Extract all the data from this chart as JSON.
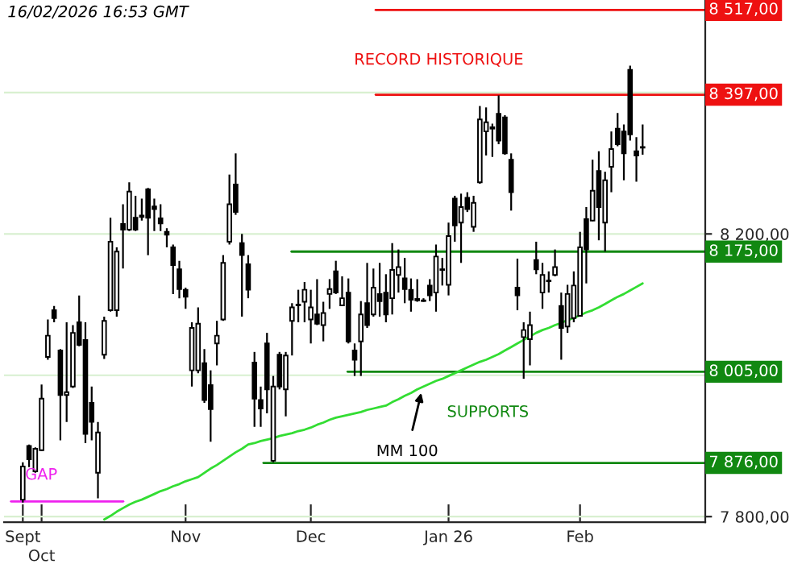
{
  "chart_data": {
    "type": "candlestick",
    "categories": [
      "Sept",
      null,
      null,
      "Oct",
      null,
      null,
      null,
      null,
      null,
      null,
      null,
      null,
      null,
      null,
      null,
      null,
      null,
      null,
      null,
      null,
      null,
      null,
      null,
      null,
      null,
      null,
      "Nov",
      null,
      null,
      null,
      null,
      null,
      null,
      null,
      null,
      null,
      null,
      null,
      null,
      null,
      null,
      null,
      null,
      null,
      null,
      null,
      "Dec",
      null,
      null,
      null,
      null,
      null,
      null,
      null,
      null,
      null,
      null,
      null,
      null,
      null,
      null,
      null,
      null,
      null,
      null,
      null,
      null,
      null,
      "Jan 26",
      null,
      null,
      null,
      null,
      null,
      null,
      null,
      null,
      null,
      null,
      null,
      null,
      null,
      null,
      null,
      null,
      null,
      null,
      null,
      null,
      "Feb",
      null,
      null,
      null,
      null,
      null,
      null,
      null,
      null,
      null,
      null
    ],
    "ohlc": [
      [
        7824,
        7877,
        7820,
        7871
      ],
      [
        7900,
        7902,
        7870,
        7881
      ],
      [
        7864,
        7898,
        7862,
        7896
      ],
      [
        7894,
        7987,
        7893,
        7967
      ],
      [
        8026,
        8079,
        8022,
        8056
      ],
      [
        8092,
        8098,
        8075,
        8081
      ],
      [
        8035,
        8037,
        7908,
        7972
      ],
      [
        7972,
        8075,
        7934,
        7976
      ],
      [
        7984,
        8071,
        7982,
        8060
      ],
      [
        8075,
        8113,
        8041,
        8043
      ],
      [
        8050,
        8075,
        7904,
        7917
      ],
      [
        7961,
        7984,
        7908,
        7934
      ],
      [
        7862,
        7934,
        7826,
        7919
      ],
      [
        8029,
        8083,
        8023,
        8077
      ],
      [
        8092,
        8223,
        8090,
        8189
      ],
      [
        8092,
        8181,
        8083,
        8175
      ],
      [
        8214,
        8242,
        8151,
        8206
      ],
      [
        8206,
        8273,
        8204,
        8260
      ],
      [
        8223,
        8254,
        8204,
        8206
      ],
      [
        8224,
        8250,
        8219,
        8226
      ],
      [
        8263,
        8265,
        8170,
        8223
      ],
      [
        8239,
        8250,
        8204,
        8235
      ],
      [
        8222,
        8242,
        8204,
        8215
      ],
      [
        8203,
        8208,
        8181,
        8199
      ],
      [
        8181,
        8185,
        8115,
        8156
      ],
      [
        8150,
        8162,
        8109,
        8122
      ],
      [
        8121,
        8124,
        8094,
        8111
      ],
      [
        8007,
        8075,
        7984,
        8067
      ],
      [
        8007,
        8096,
        8003,
        8073
      ],
      [
        8017,
        8037,
        7961,
        7965
      ],
      [
        7986,
        8007,
        7906,
        7952
      ],
      [
        8045,
        8077,
        8014,
        8056
      ],
      [
        8079,
        8170,
        8077,
        8159
      ],
      [
        8189,
        8284,
        8185,
        8242
      ],
      [
        8270,
        8314,
        8227,
        8231
      ],
      [
        8187,
        8200,
        8083,
        8170
      ],
      [
        8157,
        8170,
        8109,
        8121
      ],
      [
        8018,
        8033,
        7927,
        7967
      ],
      [
        7965,
        7984,
        7927,
        7953
      ],
      [
        8045,
        8060,
        7946,
        7980
      ],
      [
        7879,
        7999,
        7877,
        7984
      ],
      [
        8029,
        8033,
        7980,
        7984
      ],
      [
        7980,
        8033,
        7942,
        8028
      ],
      [
        8077,
        8102,
        8028,
        8096
      ],
      [
        8099,
        8121,
        8075,
        8100
      ],
      [
        8104,
        8132,
        8075,
        8121
      ],
      [
        8079,
        8121,
        8045,
        8096
      ],
      [
        8086,
        8136,
        8071,
        8073
      ],
      [
        8071,
        8104,
        8048,
        8088
      ],
      [
        8115,
        8136,
        8094,
        8122
      ],
      [
        8147,
        8162,
        8115,
        8117
      ],
      [
        8099,
        8140,
        8098,
        8109
      ],
      [
        8117,
        8137,
        8045,
        8048
      ],
      [
        8035,
        8045,
        7999,
        8022
      ],
      [
        8048,
        8105,
        7999,
        8086
      ],
      [
        8102,
        8159,
        8067,
        8071
      ],
      [
        8086,
        8151,
        8083,
        8124
      ],
      [
        8115,
        8159,
        8083,
        8105
      ],
      [
        8117,
        8143,
        8075,
        8086
      ],
      [
        8109,
        8187,
        8086,
        8149
      ],
      [
        8142,
        8178,
        8117,
        8153
      ],
      [
        8137,
        8166,
        8102,
        8122
      ],
      [
        8121,
        8137,
        8090,
        8107
      ],
      [
        8108,
        8136,
        8104,
        8106
      ],
      [
        8106,
        8109,
        8104,
        8105
      ],
      [
        8127,
        8136,
        8105,
        8113
      ],
      [
        8117,
        8185,
        8090,
        8168
      ],
      [
        8149,
        8166,
        8127,
        8150
      ],
      [
        8128,
        8216,
        8113,
        8197
      ],
      [
        8250,
        8254,
        8189,
        8212
      ],
      [
        8216,
        8257,
        8159,
        8238
      ],
      [
        8251,
        8259,
        8231,
        8235
      ],
      [
        8210,
        8254,
        8203,
        8244
      ],
      [
        8273,
        8381,
        8271,
        8362
      ],
      [
        8345,
        8379,
        8311,
        8358
      ],
      [
        8349,
        8356,
        8309,
        8351
      ],
      [
        8370,
        8396,
        8327,
        8332
      ],
      [
        8365,
        8368,
        8312,
        8314
      ],
      [
        8305,
        8314,
        8233,
        8259
      ],
      [
        8124,
        8165,
        8092,
        8113
      ],
      [
        8054,
        8075,
        7995,
        8064
      ],
      [
        8051,
        8090,
        8014,
        8071
      ],
      [
        8163,
        8189,
        8143,
        8150
      ],
      [
        8117,
        8159,
        8094,
        8142
      ],
      [
        8133,
        8147,
        8117,
        8134
      ],
      [
        8142,
        8178,
        8140,
        8153
      ],
      [
        8098,
        8117,
        8022,
        8067
      ],
      [
        8069,
        8128,
        8060,
        8115
      ],
      [
        8081,
        8147,
        8075,
        8127
      ],
      [
        8084,
        8203,
        8083,
        8181
      ],
      [
        8221,
        8238,
        8130,
        8178
      ],
      [
        8219,
        8305,
        8218,
        8261
      ],
      [
        8289,
        8317,
        8191,
        8238
      ],
      [
        8216,
        8288,
        8175,
        8276
      ],
      [
        8295,
        8345,
        8259,
        8320
      ],
      [
        8349,
        8371,
        8324,
        8327
      ],
      [
        8345,
        8355,
        8276,
        8314
      ],
      [
        8432,
        8438,
        8332,
        8341
      ],
      [
        8317,
        8337,
        8274,
        8311
      ],
      [
        8322,
        8355,
        8312,
        8323
      ]
    ],
    "series": [
      {
        "type": "line",
        "color": "#33dd33",
        "values": [
          null,
          null,
          null,
          null,
          null,
          null,
          null,
          null,
          null,
          null,
          null,
          null,
          null,
          7796,
          7801,
          7807,
          7812,
          7817,
          7821,
          7824,
          7828,
          7832,
          7836,
          7839,
          7843,
          7846,
          7850,
          7853,
          7856,
          7862,
          7868,
          7873,
          7879,
          7885,
          7891,
          7896,
          7902,
          7904,
          7907,
          7909,
          7911,
          7914,
          7916,
          7918,
          7921,
          7923,
          7926,
          7930,
          7933,
          7937,
          7940,
          7942,
          7944,
          7946,
          7948,
          7951,
          7953,
          7955,
          7957,
          7962,
          7966,
          7971,
          7975,
          7980,
          7984,
          7988,
          7992,
          7995,
          7999,
          8003,
          8007,
          8011,
          8015,
          8019,
          8022,
          8026,
          8030,
          8035,
          8040,
          8045,
          8050,
          8055,
          8060,
          8064,
          8067,
          8071,
          8074,
          8078,
          8081,
          8085,
          8089,
          8092,
          8096,
          8101,
          8106,
          8111,
          8115,
          8120,
          8125,
          8130
        ]
      }
    ],
    "ylim": [
      7792,
      8531
    ],
    "yticks": [
      {
        "value": 7800,
        "label": "7 800,00"
      },
      {
        "value": 8000,
        "label": null
      },
      {
        "value": 8200,
        "label": "8 200,00"
      },
      {
        "value": 8400,
        "label": null
      }
    ],
    "grid": "y",
    "ref_lines": [
      {
        "axis": "y",
        "value": 8517,
        "label": "8 517,00",
        "color": "#ee1111"
      },
      {
        "axis": "y",
        "value": 8397,
        "label": "8 397,00",
        "color": "#ee1111"
      },
      {
        "axis": "y",
        "value": 8175,
        "label": "8 175,00",
        "color": "#118811"
      },
      {
        "axis": "y",
        "value": 8005,
        "label": "8 005,00",
        "color": "#118811"
      },
      {
        "axis": "y",
        "value": 7876,
        "label": "7 876,00",
        "color": "#118811"
      }
    ],
    "annotations": [
      "16/02/2026 16:53 GMT",
      {
        "text": "RECORD HISTORIQUE",
        "y": 8397
      },
      "SUPPORTS",
      {
        "text": "MM 100",
        "y": 7975
      },
      "GAP"
    ]
  }
}
